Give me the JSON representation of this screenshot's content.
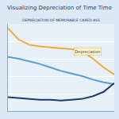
{
  "chart_data": {
    "type": "line",
    "title": "Visualizing Depreciation of Time Time",
    "subtitle": "DEPRECIATION OF MEMORABLE CARED ASS",
    "x": [
      0,
      1,
      2,
      3,
      4,
      5,
      6,
      7,
      8,
      9,
      10
    ],
    "series": [
      {
        "color": "#f2a93b",
        "values": [
          95,
          82,
          76,
          74,
          73,
          72,
          71,
          68,
          60,
          50,
          42
        ]
      },
      {
        "color": "#5b9bd5",
        "values": [
          62,
          60,
          57,
          54,
          50,
          46,
          43,
          40,
          36,
          33,
          31
        ]
      },
      {
        "color": "#1f3a6e",
        "values": [
          16,
          15,
          14,
          13,
          13,
          12,
          13,
          14,
          17,
          22,
          32
        ]
      }
    ],
    "xlim": [
      0,
      10
    ],
    "ylim": [
      0,
      100
    ],
    "yticks": [
      0,
      20,
      40,
      60,
      80,
      100
    ],
    "grid": true,
    "tick_labels": false,
    "annotations": [
      {
        "text": "Depreciation",
        "x": 7.5,
        "y": 68
      }
    ]
  }
}
